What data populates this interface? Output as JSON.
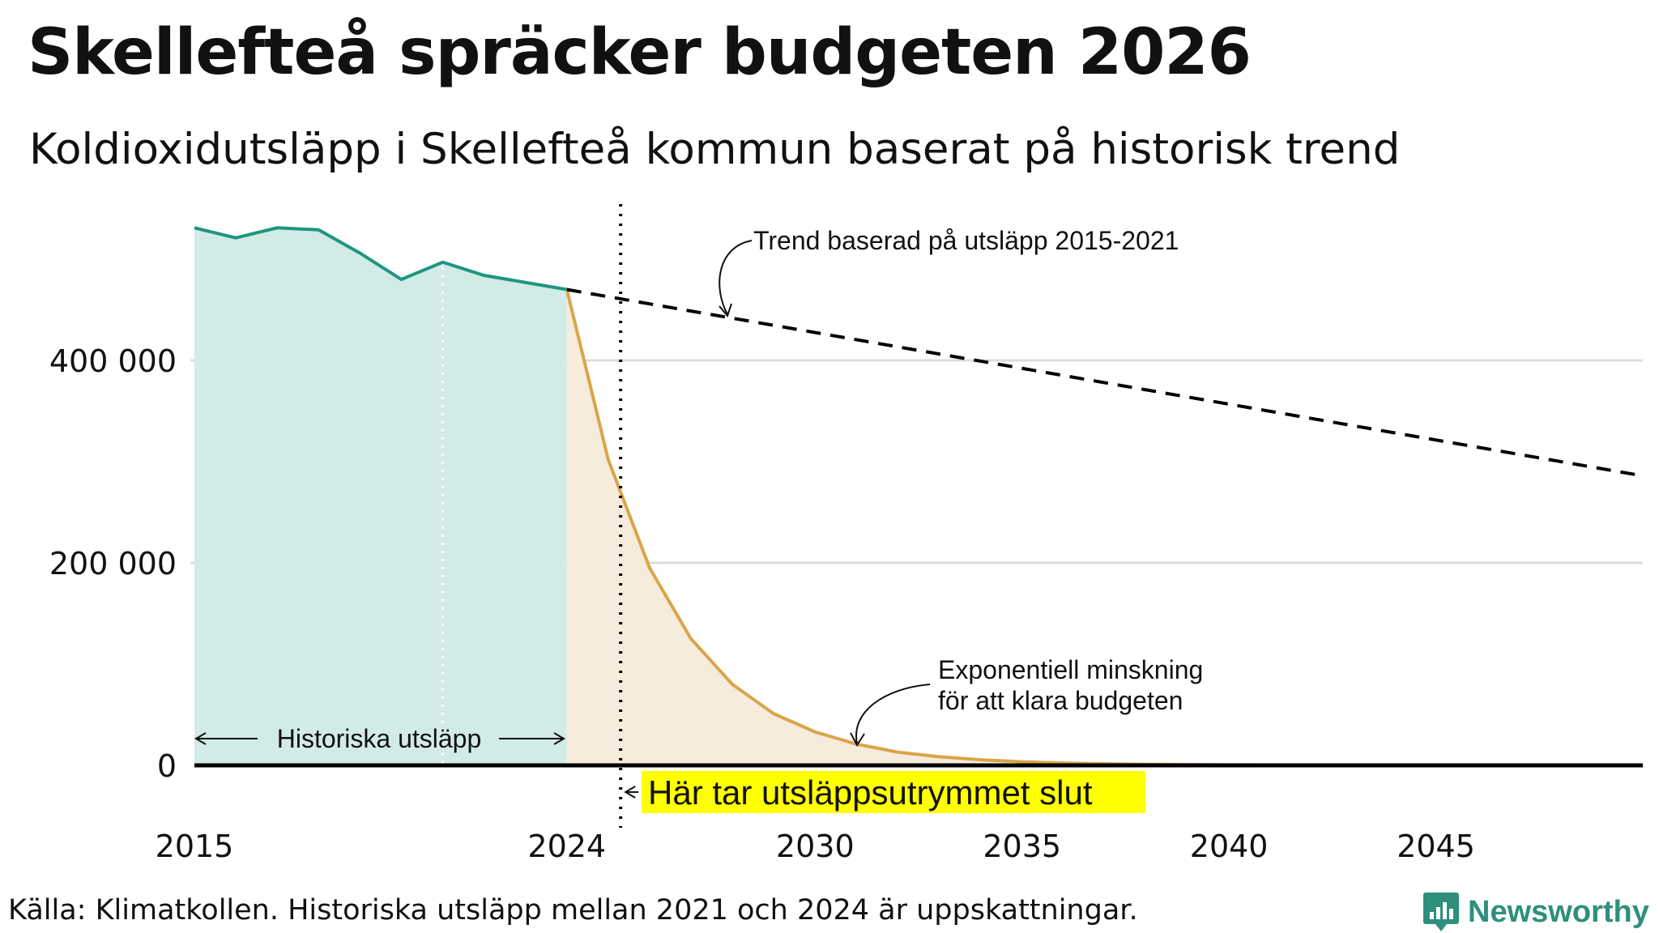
{
  "title": "Skellefteå spräcker budgeten 2026",
  "subtitle": "Koldioxidutsläpp i Skellefteå kommun baserat på historisk trend",
  "source": "Källa: Klimatkollen. Historiska utsläpp mellan 2021 och 2024 är uppskattningar.",
  "brand": "Newsworthy",
  "colors": {
    "historical_line": "#1f9580",
    "historical_fill": "#d2ebe6",
    "budget_line": "#d9a54a",
    "budget_fill": "#f5ecdc",
    "trend_line": "#000000",
    "grid": "#dcdcdc",
    "highlight": "#ffff00",
    "brand": "#2f8f7c"
  },
  "chart_data": {
    "type": "area",
    "xlim": [
      2015,
      2050
    ],
    "ylim": [
      0,
      550000
    ],
    "x_ticks": [
      "2015",
      "2024",
      "2030",
      "2035",
      "2040",
      "2045"
    ],
    "x_tick_values": [
      2015,
      2024,
      2030,
      2035,
      2040,
      2045
    ],
    "y_ticks": [
      "0",
      "200 000",
      "400 000"
    ],
    "y_tick_values": [
      0,
      200000,
      400000
    ],
    "series": [
      {
        "name": "Historiska utsläpp",
        "style": "area",
        "x": [
          2015,
          2016,
          2017,
          2018,
          2019,
          2020,
          2021,
          2022,
          2023,
          2024
        ],
        "values": [
          531000,
          521000,
          531000,
          529000,
          506000,
          480000,
          497000,
          484000,
          477000,
          470000
        ]
      },
      {
        "name": "Exponentiell minskning för att klara budgeten",
        "style": "area",
        "x": [
          2024,
          2025,
          2026,
          2027,
          2028,
          2029,
          2030,
          2031,
          2032,
          2033,
          2034,
          2035,
          2036,
          2037,
          2038,
          2040,
          2045,
          2050
        ],
        "values": [
          470000,
          302000,
          195000,
          125000,
          80000,
          51000,
          33000,
          21000,
          13000,
          8500,
          5500,
          3500,
          2300,
          1500,
          1000,
          500,
          200,
          100
        ]
      },
      {
        "name": "Trend baserad på utsläpp 2015-2021",
        "style": "dashed",
        "x": [
          2024,
          2050
        ],
        "values": [
          470000,
          286000
        ]
      }
    ],
    "vertical_lines": [
      {
        "x": 2021,
        "style": "dotted-white"
      },
      {
        "x": 2025.3,
        "style": "dotted-black",
        "label": "Här tar utsläppsutrymmet slut"
      }
    ],
    "annotations": {
      "trend": "Trend baserad på utsläpp 2015-2021",
      "exponential_line1": "Exponentiell minskning",
      "exponential_line2": "för att klara budgeten",
      "historical": "Historiska utsläpp",
      "budget_end": "Här tar utsläppsutrymmet slut"
    }
  }
}
